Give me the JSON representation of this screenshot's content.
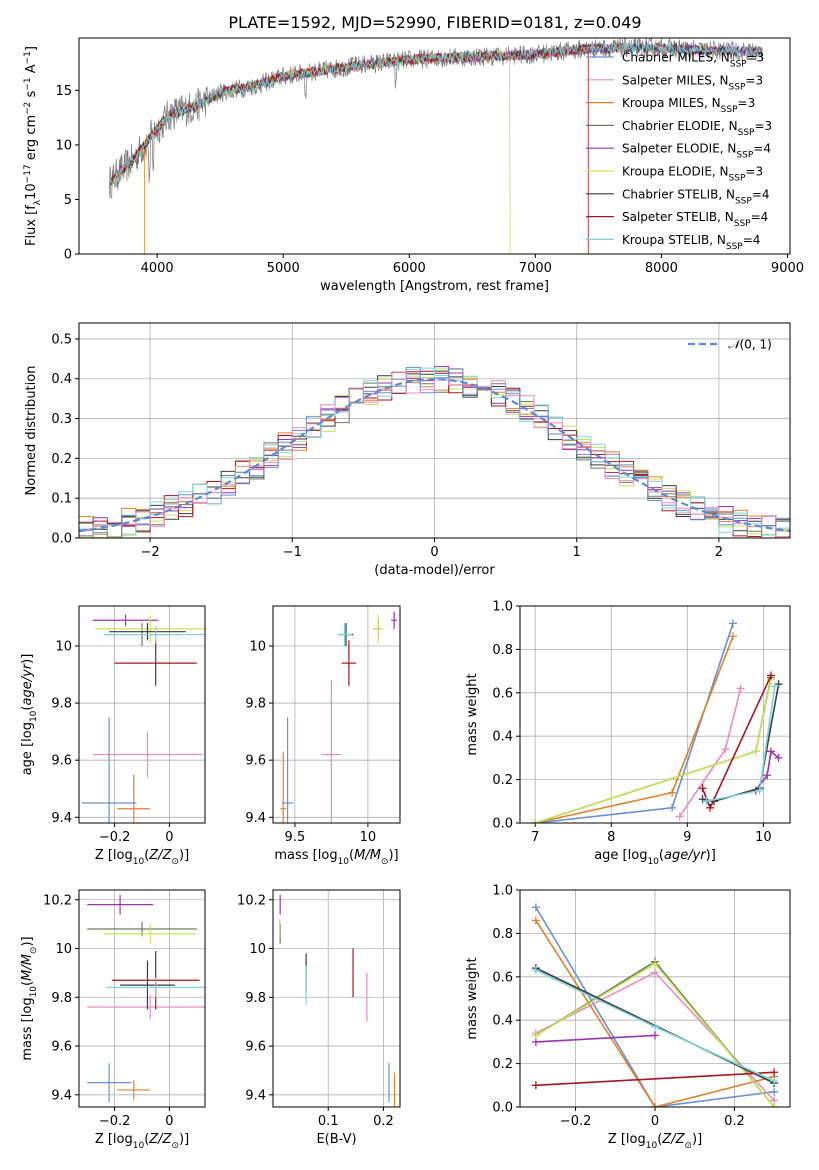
{
  "title": "PLATE=1592, MJD=52990, FIBERID=0181, z=0.049",
  "colors": [
    "#6a8fd6",
    "#e98cc1",
    "#e2802c",
    "#6d7b5d",
    "#9a34ad",
    "#c7e35a",
    "#3a3a3a",
    "#a5181f",
    "#7dd3d9"
  ],
  "series_names": [
    "Chabrier MILES, N_SSP=3",
    "Salpeter MILES, N_SSP=3",
    "Kroupa MILES, N_SSP=3",
    "Chabrier ELODIE, N_SSP=3",
    "Salpeter ELODIE, N_SSP=4",
    "Kroupa ELODIE, N_SSP=3",
    "Chabrier STELIB, N_SSP=4",
    "Salpeter STELIB, N_SSP=4",
    "Kroupa STELIB, N_SSP=4"
  ],
  "chart_data": [
    {
      "id": "spectrum",
      "type": "line",
      "xlabel": "wavelength [Angstrom, rest frame]",
      "ylabel": "Flux [f_λ10^-17 erg cm^-2 s^-1 A^-1]",
      "xlim": [
        3380,
        9020
      ],
      "ylim": [
        0,
        19.8
      ],
      "xticks": [
        4000,
        5000,
        6000,
        7000,
        8000,
        9000
      ],
      "yticks": [
        0,
        5,
        10,
        15
      ],
      "legend": "top-right",
      "continuum": {
        "wavelength": [
          3620,
          3700,
          3800,
          3900,
          4000,
          4100,
          4300,
          4500,
          4800,
          5000,
          5300,
          5600,
          6000,
          6300,
          6600,
          7000,
          7400,
          7700,
          8000,
          8300,
          8600,
          8800
        ],
        "flux": [
          6.5,
          7.5,
          8.5,
          10.0,
          11.5,
          12.8,
          13.5,
          14.8,
          15.5,
          16.3,
          16.8,
          17.3,
          17.8,
          18.0,
          18.1,
          18.3,
          18.8,
          18.9,
          18.9,
          18.7,
          18.6,
          18.5
        ]
      },
      "model_cutoffs": [
        {
          "series": 2,
          "wavelength": 3900
        },
        {
          "series": 5,
          "wavelength": 6800
        },
        {
          "series": 7,
          "wavelength": 7420
        }
      ]
    },
    {
      "id": "residual-histogram",
      "type": "bar",
      "xlabel": "(data-model)/error",
      "ylabel": "Normed distribution",
      "xlim": [
        -2.5,
        2.5
      ],
      "ylim": [
        0,
        0.54
      ],
      "xticks": [
        -2,
        -1,
        0,
        1,
        2
      ],
      "yticks": [
        0.0,
        0.1,
        0.2,
        0.3,
        0.4,
        0.5
      ],
      "bin_width": 0.1,
      "reference_curve": "𝒩(0,1)",
      "legend": "top-right"
    },
    {
      "id": "age-vs-Z",
      "type": "scatter",
      "xlabel": "Z [log10(Z/Z⊙)]",
      "ylabel": "age [log10(age/yr)]",
      "xlim": [
        -0.33,
        0.13
      ],
      "ylim": [
        9.38,
        10.14
      ],
      "xticks": [
        -0.2,
        0.0
      ],
      "yticks": [
        9.4,
        9.6,
        9.8,
        10.0
      ],
      "points": [
        {
          "x": -0.22,
          "y": 9.45,
          "xerr": 0.1,
          "yerr": 0.3
        },
        {
          "x": -0.08,
          "y": 9.62,
          "xerr": 0.2,
          "yerr": 0.08
        },
        {
          "x": -0.13,
          "y": 9.43,
          "xerr": 0.06,
          "yerr": 0.12
        },
        {
          "x": -0.1,
          "y": 10.04,
          "xerr": 0.14,
          "yerr": 0.04
        },
        {
          "x": -0.16,
          "y": 10.09,
          "xerr": 0.12,
          "yerr": 0.02
        },
        {
          "x": -0.07,
          "y": 10.06,
          "xerr": 0.2,
          "yerr": 0.05
        },
        {
          "x": -0.08,
          "y": 10.05,
          "xerr": 0.14,
          "yerr": 0.03
        },
        {
          "x": -0.05,
          "y": 9.94,
          "xerr": 0.15,
          "yerr": 0.08
        },
        {
          "x": -0.05,
          "y": 10.04,
          "xerr": 0.19,
          "yerr": 0.03
        }
      ]
    },
    {
      "id": "age-vs-mass",
      "type": "scatter",
      "xlabel": "mass [log10(M/M⊙)]",
      "ylabel": "",
      "xlim": [
        9.35,
        10.22
      ],
      "ylim": [
        9.38,
        10.14
      ],
      "xticks": [
        9.5,
        10.0
      ],
      "yticks": [
        9.4,
        9.6,
        9.8,
        10.0
      ],
      "points": [
        {
          "x": 9.45,
          "y": 9.45,
          "xerr": 0.04,
          "yerr": 0.3
        },
        {
          "x": 9.75,
          "y": 9.62,
          "xerr": 0.07,
          "yerr": 0.26
        },
        {
          "x": 9.42,
          "y": 9.43,
          "xerr": 0.02,
          "yerr": 0.2
        },
        {
          "x": 10.07,
          "y": 10.06,
          "xerr": 0.03,
          "yerr": 0.03
        },
        {
          "x": 10.18,
          "y": 10.09,
          "xerr": 0.02,
          "yerr": 0.03
        },
        {
          "x": 10.07,
          "y": 10.06,
          "xerr": 0.03,
          "yerr": 0.05
        },
        {
          "x": 9.85,
          "y": 10.04,
          "xerr": 0.05,
          "yerr": 0.04
        },
        {
          "x": 9.87,
          "y": 9.94,
          "xerr": 0.05,
          "yerr": 0.08
        },
        {
          "x": 9.84,
          "y": 10.04,
          "xerr": 0.05,
          "yerr": 0.04
        }
      ]
    },
    {
      "id": "mass-weight-vs-age",
      "type": "line",
      "xlabel": "age [log10(age/yr)]",
      "ylabel": "mass weight",
      "xlim": [
        6.8,
        10.35
      ],
      "ylim": [
        0,
        1
      ],
      "xticks": [
        7,
        8,
        9,
        10
      ],
      "yticks": [
        0.0,
        0.2,
        0.4,
        0.6,
        0.8,
        1.0
      ],
      "series": [
        {
          "x": [
            7.0,
            8.8,
            9.6
          ],
          "y": [
            0.0,
            0.07,
            0.92
          ]
        },
        {
          "x": [
            8.9,
            9.5,
            9.7
          ],
          "y": [
            0.03,
            0.34,
            0.62
          ]
        },
        {
          "x": [
            7.0,
            8.8,
            9.6
          ],
          "y": [
            0.0,
            0.14,
            0.86
          ]
        },
        {
          "x": [
            7.0,
            9.9,
            10.1
          ],
          "y": [
            0.0,
            0.33,
            0.67
          ]
        },
        {
          "x": [
            9.9,
            10.05,
            10.1,
            10.2
          ],
          "y": [
            0.15,
            0.22,
            0.33,
            0.3
          ]
        },
        {
          "x": [
            7.0,
            9.9,
            10.1
          ],
          "y": [
            0.0,
            0.33,
            0.66
          ]
        },
        {
          "x": [
            9.2,
            9.35,
            9.95,
            10.2
          ],
          "y": [
            0.11,
            0.1,
            0.16,
            0.64
          ]
        },
        {
          "x": [
            9.2,
            9.3,
            10.1
          ],
          "y": [
            0.16,
            0.07,
            0.68
          ]
        },
        {
          "x": [
            9.25,
            9.95,
            10.15
          ],
          "y": [
            0.1,
            0.15,
            0.63
          ]
        }
      ]
    },
    {
      "id": "mass-vs-Z",
      "type": "scatter",
      "xlabel": "Z [log10(Z/Z⊙)]",
      "ylabel": "mass [log10(M/M⊙)]",
      "xlim": [
        -0.33,
        0.13
      ],
      "ylim": [
        9.35,
        10.24
      ],
      "xticks": [
        -0.2,
        0.0
      ],
      "yticks": [
        9.4,
        9.6,
        9.8,
        10.0,
        10.2
      ],
      "points": [
        {
          "x": -0.22,
          "y": 9.45,
          "xerr": 0.08,
          "yerr": 0.08
        },
        {
          "x": -0.07,
          "y": 9.76,
          "xerr": 0.23,
          "yerr": 0.05
        },
        {
          "x": -0.13,
          "y": 9.42,
          "xerr": 0.06,
          "yerr": 0.04
        },
        {
          "x": -0.1,
          "y": 10.08,
          "xerr": 0.2,
          "yerr": 0.03
        },
        {
          "x": -0.18,
          "y": 10.18,
          "xerr": 0.12,
          "yerr": 0.04
        },
        {
          "x": -0.07,
          "y": 10.06,
          "xerr": 0.17,
          "yerr": 0.04
        },
        {
          "x": -0.08,
          "y": 9.85,
          "xerr": 0.1,
          "yerr": 0.1
        },
        {
          "x": -0.05,
          "y": 9.87,
          "xerr": 0.16,
          "yerr": 0.12
        },
        {
          "x": -0.05,
          "y": 9.84,
          "xerr": 0.18,
          "yerr": 0.04
        }
      ]
    },
    {
      "id": "mass-vs-ebv",
      "type": "scatter",
      "xlabel": "E(B-V)",
      "ylabel": "",
      "xlim": [
        0.0,
        0.23
      ],
      "ylim": [
        9.35,
        10.24
      ],
      "xticks": [
        0.1,
        0.2
      ],
      "yticks": [
        9.4,
        9.6,
        9.8,
        10.0,
        10.2
      ],
      "points": [
        {
          "x": 0.21,
          "y": 9.45,
          "yerr": 0.08
        },
        {
          "x": 0.17,
          "y": 9.8,
          "yerr": 0.1
        },
        {
          "x": 0.22,
          "y": 9.42,
          "yerr": 0.07
        },
        {
          "x": 0.013,
          "y": 10.06,
          "yerr": 0.04
        },
        {
          "x": 0.013,
          "y": 10.18,
          "yerr": 0.04
        },
        {
          "x": 0.012,
          "y": 10.08,
          "yerr": 0.04
        },
        {
          "x": 0.06,
          "y": 9.9,
          "yerr": 0.08
        },
        {
          "x": 0.145,
          "y": 9.9,
          "yerr": 0.1
        },
        {
          "x": 0.06,
          "y": 9.85,
          "yerr": 0.08
        }
      ]
    },
    {
      "id": "mass-weight-vs-Z",
      "type": "line",
      "xlabel": "Z [log10(Z/Z⊙)]",
      "ylabel": "mass weight",
      "xlim": [
        -0.34,
        0.34
      ],
      "ylim": [
        0,
        1
      ],
      "xticks": [
        -0.2,
        0.0,
        0.2
      ],
      "yticks": [
        0.0,
        0.2,
        0.4,
        0.6,
        0.8,
        1.0
      ],
      "series": [
        {
          "x": [
            -0.3,
            0.0,
            0.3
          ],
          "y": [
            0.92,
            0.0,
            0.07
          ]
        },
        {
          "x": [
            -0.3,
            0.0,
            0.3
          ],
          "y": [
            0.34,
            0.62,
            0.03
          ]
        },
        {
          "x": [
            -0.3,
            0.0,
            0.3
          ],
          "y": [
            0.86,
            0.0,
            0.14
          ]
        },
        {
          "x": [
            -0.3,
            0.0,
            0.3
          ],
          "y": [
            0.33,
            0.67,
            0.0
          ]
        },
        {
          "x": [
            -0.3,
            0.0
          ],
          "y": [
            0.3,
            0.33
          ]
        },
        {
          "x": [
            -0.3,
            0.0,
            0.3
          ],
          "y": [
            0.33,
            0.66,
            0.0
          ]
        },
        {
          "x": [
            -0.3,
            0.3
          ],
          "y": [
            0.64,
            0.11
          ]
        },
        {
          "x": [
            -0.3,
            0.3
          ],
          "y": [
            0.1,
            0.16
          ]
        },
        {
          "x": [
            -0.3,
            0.0,
            0.3
          ],
          "y": [
            0.63,
            0.37,
            0.12
          ]
        }
      ]
    }
  ]
}
